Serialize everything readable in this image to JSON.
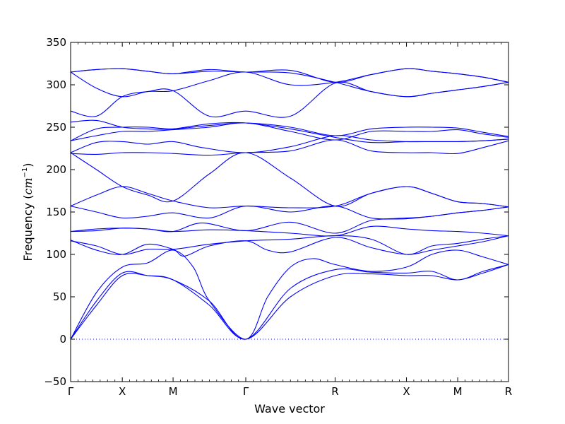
{
  "chart_data": {
    "type": "line",
    "xlabel": "Wave vector",
    "ylabel_text": "Frequency (",
    "ylabel_unit": "cm",
    "ylabel_exp": "−1",
    "ylabel_close": ")",
    "ylim": [
      -50,
      350
    ],
    "yticks": [
      -50,
      0,
      50,
      100,
      150,
      200,
      250,
      300,
      350
    ],
    "ytick_labels": [
      "−50",
      "0",
      "50",
      "100",
      "150",
      "200",
      "250",
      "300",
      "350"
    ],
    "xlim": [
      0,
      1
    ],
    "xticks": [
      {
        "pos": 0.0,
        "label": "Γ"
      },
      {
        "pos": 0.118,
        "label": "X"
      },
      {
        "pos": 0.234,
        "label": "M"
      },
      {
        "pos": 0.4,
        "label": "Γ"
      },
      {
        "pos": 0.604,
        "label": "R"
      },
      {
        "pos": 0.767,
        "label": "X"
      },
      {
        "pos": 0.884,
        "label": "M"
      },
      {
        "pos": 1.0,
        "label": "R"
      }
    ],
    "line_color": "#0000ff",
    "zero_line": {
      "y": 0,
      "style": "dotted",
      "color": "#0000ff"
    },
    "grid": false,
    "legend": "none",
    "series": [
      {
        "x": [
          0,
          0.059,
          0.118,
          0.176,
          0.234,
          0.317,
          0.4,
          0.502,
          0.604,
          0.686,
          0.767,
          0.825,
          0.884,
          0.942,
          1.0
        ],
        "y": [
          0,
          40,
          75,
          75,
          70,
          40,
          0,
          50,
          75,
          77,
          75,
          75,
          70,
          78,
          88
        ]
      },
      {
        "x": [
          0,
          0.059,
          0.118,
          0.176,
          0.234,
          0.317,
          0.4,
          0.502,
          0.604,
          0.686,
          0.767,
          0.825,
          0.884,
          0.942,
          1.0
        ],
        "y": [
          0,
          45,
          78,
          75,
          70,
          45,
          0,
          60,
          82,
          79,
          78,
          80,
          70,
          80,
          88
        ]
      },
      {
        "x": [
          0,
          0.059,
          0.118,
          0.176,
          0.234,
          0.28,
          0.317,
          0.4,
          0.45,
          0.502,
          0.553,
          0.604,
          0.686,
          0.767,
          0.825,
          0.884,
          0.942,
          1.0
        ],
        "y": [
          0,
          55,
          85,
          90,
          105,
          85,
          45,
          0,
          50,
          85,
          95,
          88,
          80,
          85,
          100,
          105,
          97,
          88
        ]
      },
      {
        "x": [
          0,
          0.059,
          0.118,
          0.176,
          0.234,
          0.317,
          0.4,
          0.502,
          0.604,
          0.686,
          0.767,
          0.825,
          0.884,
          0.942,
          1.0
        ],
        "y": [
          116,
          110,
          100,
          106,
          106,
          112,
          116,
          118,
          122,
          118,
          100,
          110,
          113,
          118,
          122
        ]
      },
      {
        "x": [
          0,
          0.059,
          0.118,
          0.176,
          0.234,
          0.26,
          0.317,
          0.4,
          0.45,
          0.502,
          0.604,
          0.686,
          0.767,
          0.825,
          0.884,
          0.942,
          1.0
        ],
        "y": [
          117,
          105,
          100,
          112,
          106,
          98,
          110,
          116,
          105,
          103,
          120,
          108,
          100,
          105,
          110,
          115,
          122
        ]
      },
      {
        "x": [
          0,
          0.059,
          0.118,
          0.176,
          0.234,
          0.317,
          0.4,
          0.502,
          0.604,
          0.686,
          0.767,
          0.825,
          0.884,
          0.942,
          1.0
        ],
        "y": [
          127,
          130,
          131,
          130,
          127,
          129,
          128,
          125,
          122,
          133,
          130,
          128,
          127,
          125,
          122
        ]
      },
      {
        "x": [
          0,
          0.059,
          0.118,
          0.176,
          0.234,
          0.3,
          0.4,
          0.502,
          0.604,
          0.686,
          0.767,
          0.825,
          0.884,
          0.942,
          1.0
        ],
        "y": [
          127,
          128,
          131,
          130,
          127,
          137,
          128,
          138,
          125,
          140,
          142,
          145,
          149,
          152,
          156
        ]
      },
      {
        "x": [
          0,
          0.059,
          0.118,
          0.176,
          0.234,
          0.317,
          0.4,
          0.502,
          0.604,
          0.686,
          0.767,
          0.825,
          0.884,
          0.942,
          1.0
        ],
        "y": [
          157,
          150,
          143,
          145,
          149,
          143,
          157,
          150,
          157,
          143,
          143,
          145,
          149,
          152,
          156
        ]
      },
      {
        "x": [
          0,
          0.059,
          0.118,
          0.176,
          0.234,
          0.317,
          0.4,
          0.502,
          0.604,
          0.686,
          0.767,
          0.825,
          0.884,
          0.942,
          1.0
        ],
        "y": [
          157,
          170,
          180,
          172,
          163,
          155,
          157,
          155,
          157,
          172,
          180,
          172,
          162,
          160,
          156
        ]
      },
      {
        "x": [
          0,
          0.059,
          0.118,
          0.176,
          0.234,
          0.317,
          0.4,
          0.502,
          0.604,
          0.686,
          0.767,
          0.825,
          0.884,
          0.942,
          1.0
        ],
        "y": [
          220,
          200,
          180,
          170,
          163,
          195,
          220,
          190,
          157,
          172,
          180,
          172,
          162,
          160,
          156
        ]
      },
      {
        "x": [
          0,
          0.059,
          0.118,
          0.176,
          0.234,
          0.317,
          0.4,
          0.502,
          0.604,
          0.686,
          0.767,
          0.825,
          0.884,
          0.942,
          1.0
        ],
        "y": [
          219,
          218,
          220,
          220,
          219,
          217,
          220,
          222,
          235,
          222,
          220,
          220,
          219,
          226,
          234
        ]
      },
      {
        "x": [
          0,
          0.059,
          0.118,
          0.176,
          0.234,
          0.3,
          0.4,
          0.502,
          0.604,
          0.686,
          0.767,
          0.825,
          0.884,
          0.942,
          1.0
        ],
        "y": [
          220,
          232,
          233,
          230,
          233,
          226,
          220,
          227,
          240,
          235,
          233,
          233,
          233,
          234,
          236
        ]
      },
      {
        "x": [
          0,
          0.059,
          0.118,
          0.176,
          0.234,
          0.317,
          0.4,
          0.502,
          0.604,
          0.686,
          0.767,
          0.825,
          0.884,
          0.942,
          1.0
        ],
        "y": [
          234,
          240,
          245,
          245,
          247,
          250,
          255,
          245,
          235,
          245,
          245,
          245,
          247,
          242,
          238
        ]
      },
      {
        "x": [
          0,
          0.059,
          0.118,
          0.176,
          0.234,
          0.317,
          0.4,
          0.502,
          0.604,
          0.686,
          0.767,
          0.825,
          0.884,
          0.942,
          1.0
        ],
        "y": [
          234,
          248,
          250,
          250,
          248,
          252,
          255,
          250,
          240,
          248,
          250,
          250,
          249,
          244,
          239
        ]
      },
      {
        "x": [
          0,
          0.059,
          0.118,
          0.176,
          0.234,
          0.317,
          0.4,
          0.502,
          0.604,
          0.686,
          0.767,
          0.825,
          0.884,
          0.942,
          1.0
        ],
        "y": [
          256,
          258,
          250,
          248,
          248,
          254,
          255,
          248,
          238,
          232,
          233,
          233,
          233,
          234,
          236
        ]
      },
      {
        "x": [
          0,
          0.059,
          0.118,
          0.176,
          0.234,
          0.317,
          0.4,
          0.502,
          0.604,
          0.686,
          0.767,
          0.825,
          0.884,
          0.942,
          1.0
        ],
        "y": [
          269,
          263,
          286,
          292,
          293,
          263,
          269,
          263,
          302,
          292,
          286,
          290,
          294,
          298,
          303
        ]
      },
      {
        "x": [
          0,
          0.059,
          0.118,
          0.176,
          0.234,
          0.317,
          0.4,
          0.502,
          0.604,
          0.686,
          0.767,
          0.825,
          0.884,
          0.942,
          1.0
        ],
        "y": [
          315,
          296,
          286,
          292,
          293,
          305,
          315,
          300,
          303,
          312,
          319,
          316,
          313,
          309,
          303
        ]
      },
      {
        "x": [
          0,
          0.059,
          0.118,
          0.176,
          0.234,
          0.317,
          0.4,
          0.502,
          0.604,
          0.686,
          0.767,
          0.825,
          0.884,
          0.942,
          1.0
        ],
        "y": [
          315,
          318,
          319,
          316,
          313,
          316,
          315,
          314,
          303,
          292,
          286,
          290,
          294,
          298,
          303
        ]
      },
      {
        "x": [
          0,
          0.059,
          0.118,
          0.176,
          0.234,
          0.317,
          0.4,
          0.502,
          0.604,
          0.686,
          0.767,
          0.825,
          0.884,
          0.942,
          1.0
        ],
        "y": [
          315,
          318,
          319,
          316,
          313,
          318,
          315,
          317,
          303,
          312,
          319,
          316,
          313,
          309,
          303
        ]
      }
    ]
  }
}
